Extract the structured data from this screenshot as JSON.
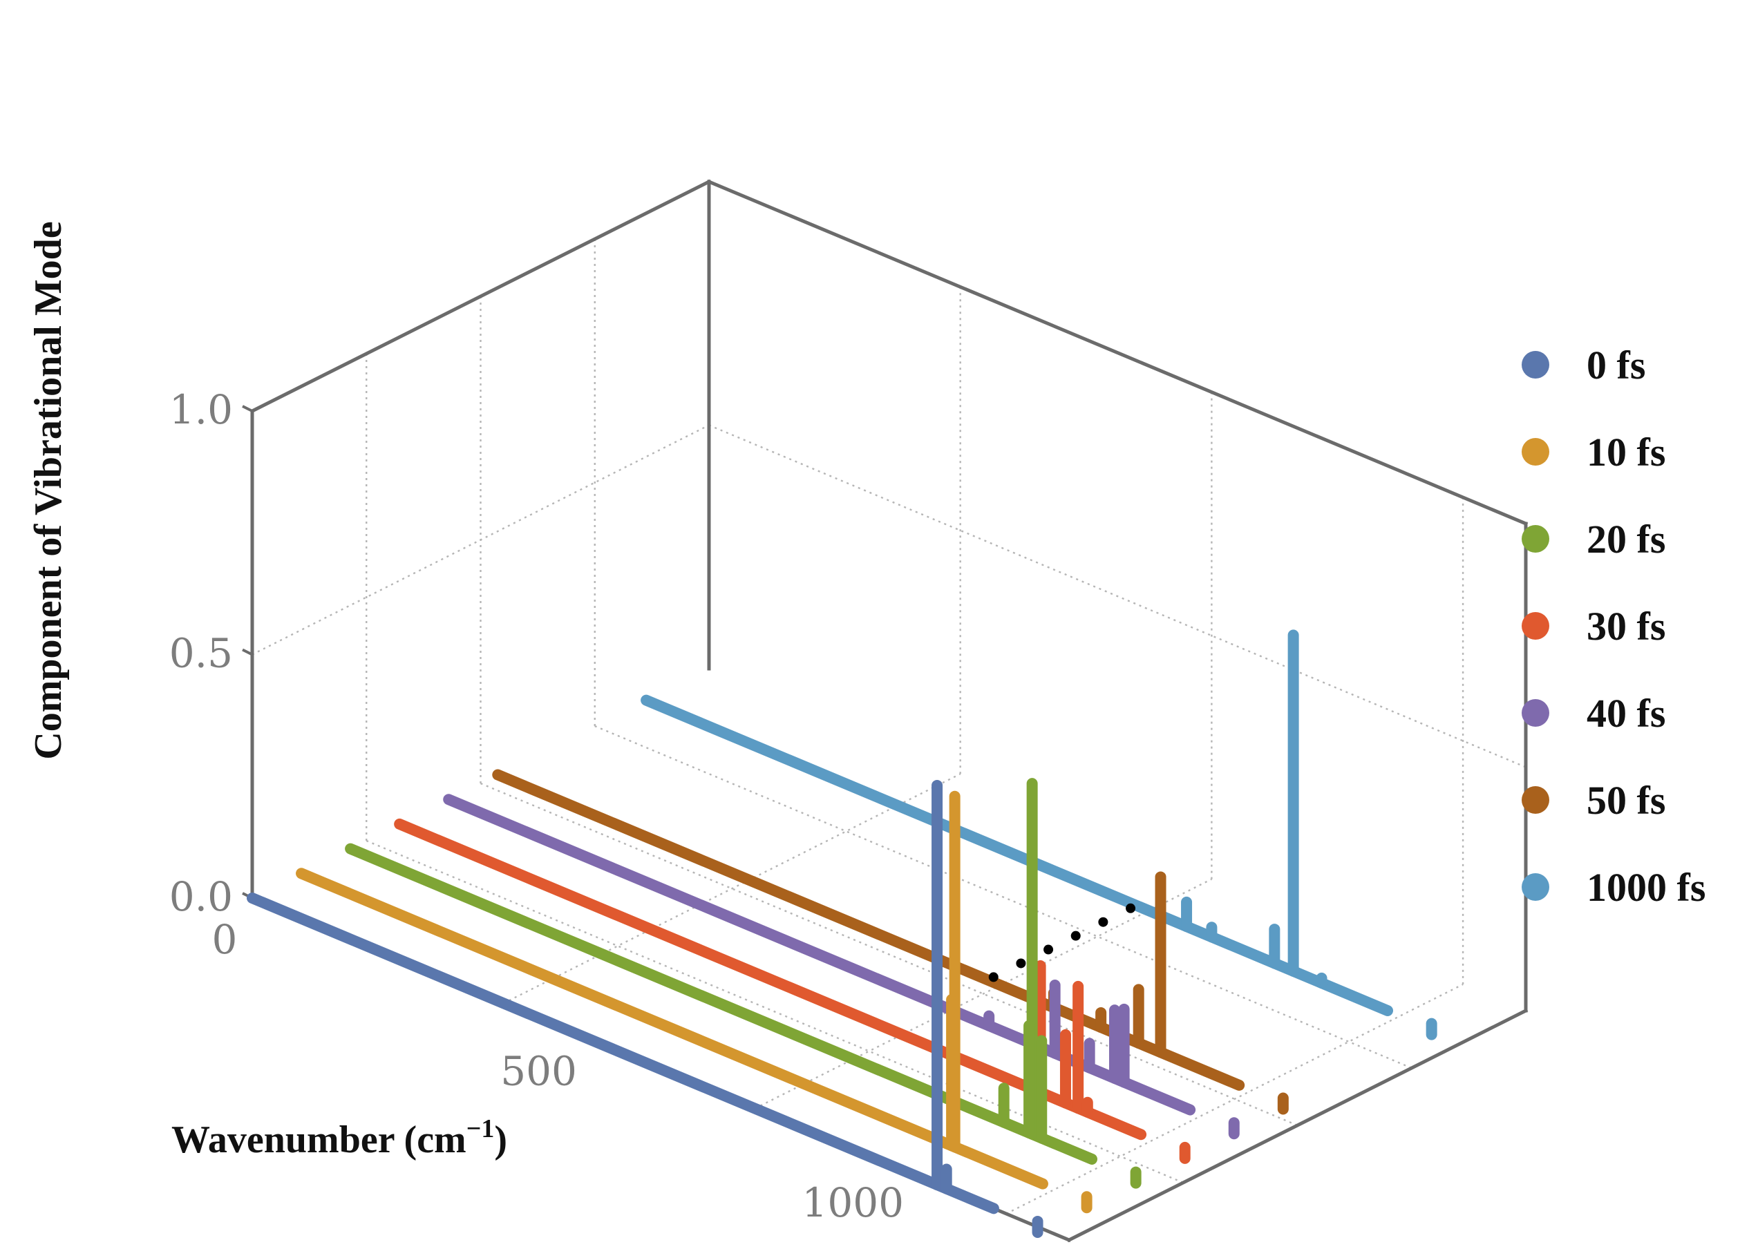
{
  "chart_data": {
    "type": "line",
    "projection": "3d",
    "ylabel": "Component of Vibrational Mode",
    "xlabel": "Wavenumber (cm",
    "xlabel_exponent": "−1",
    "xlabel_close": ")",
    "xlim": [
      0,
      1300
    ],
    "zlim": [
      0,
      1.0
    ],
    "x_ticks": [
      {
        "value": 0,
        "label": "0"
      },
      {
        "value": 500,
        "label": "500"
      },
      {
        "value": 1000,
        "label": "1000"
      }
    ],
    "z_ticks": [
      {
        "value": 0.0,
        "label": "0.0"
      },
      {
        "value": 0.5,
        "label": "0.5"
      },
      {
        "value": 1.0,
        "label": "1.0"
      }
    ],
    "grid": true,
    "legend_position": "right",
    "gap_marker": "…",
    "series": [
      {
        "name": "0 fs",
        "color": "#5a77ad",
        "depth": 0,
        "peaks": [
          {
            "x": 1090,
            "y": 0.82
          },
          {
            "x": 1105,
            "y": 0.04
          }
        ]
      },
      {
        "name": "10 fs",
        "color": "#d4962e",
        "depth": 1,
        "peaks": [
          {
            "x": 1040,
            "y": 0.72
          },
          {
            "x": 1035,
            "y": 0.3
          }
        ]
      },
      {
        "name": "20 fs",
        "color": "#7fa535",
        "depth": 2,
        "peaks": [
          {
            "x": 1040,
            "y": 0.07
          },
          {
            "x": 1085,
            "y": 0.72
          },
          {
            "x": 1080,
            "y": 0.22
          },
          {
            "x": 1100,
            "y": 0.2
          }
        ]
      },
      {
        "name": "30 fs",
        "color": "#e0592f",
        "depth": 3,
        "peaks": [
          {
            "x": 1020,
            "y": 0.26
          },
          {
            "x": 1060,
            "y": 0.14
          },
          {
            "x": 1080,
            "y": 0.25
          },
          {
            "x": 1095,
            "y": 0.02
          }
        ]
      },
      {
        "name": "40 fs",
        "color": "#7f6aad",
        "depth": 4,
        "peaks": [
          {
            "x": 860,
            "y": 0.02
          },
          {
            "x": 965,
            "y": 0.14
          },
          {
            "x": 1020,
            "y": 0.05
          },
          {
            "x": 1060,
            "y": 0.14
          },
          {
            "x": 1075,
            "y": 0.15
          }
        ]
      },
      {
        "name": "50 fs",
        "color": "#a9611c",
        "depth": 5,
        "peaks": [
          {
            "x": 885,
            "y": 0.03
          },
          {
            "x": 960,
            "y": 0.03
          },
          {
            "x": 1020,
            "y": 0.11
          },
          {
            "x": 1055,
            "y": 0.36
          }
        ]
      },
      {
        "name": "1000 fs",
        "color": "#5b9bc4",
        "depth": 6,
        "peaks": [
          {
            "x": 860,
            "y": 0.05
          },
          {
            "x": 900,
            "y": 0.02
          },
          {
            "x": 1000,
            "y": 0.07
          },
          {
            "x": 1030,
            "y": 0.69
          },
          {
            "x": 1075,
            "y": 0.01
          }
        ]
      }
    ]
  }
}
